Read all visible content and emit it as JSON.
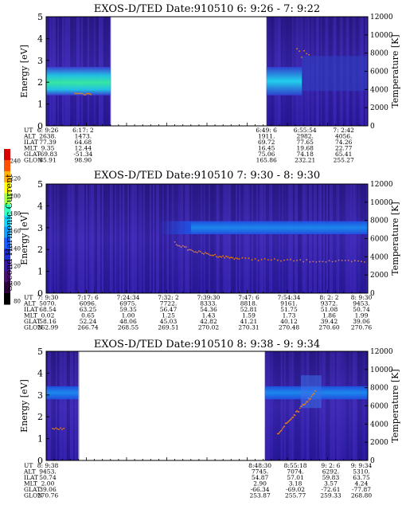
{
  "colorbar": {
    "label": "Second Harmonic Current",
    "ticks": [
      "240",
      "220",
      "200",
      "180",
      "160",
      "140",
      "120",
      "100",
      "80"
    ]
  },
  "chart_data": [
    {
      "type": "heatmap",
      "title": "EXOS-D/TED   Date:910510  6: 9:26 - 7: 9:22",
      "ylabel": "Energy [eV]",
      "y2label": "Temperature [K]",
      "ylim": [
        0,
        5
      ],
      "y2lim": [
        0,
        12000
      ],
      "yticks": [
        "0",
        "1",
        "2",
        "3",
        "4",
        "5"
      ],
      "y2ticks": [
        "0",
        "2000",
        "4000",
        "6000",
        "8000",
        "10000",
        "12000"
      ],
      "data_segments": [
        [
          0,
          0.2
        ],
        [
          0.685,
          1.0
        ]
      ],
      "bright_band": {
        "energy_range": [
          1.4,
          2.7
        ]
      },
      "ephemeris_labels": [
        "UT",
        "ALT",
        "ILAT",
        "MLT",
        "GLAT",
        "GLON"
      ],
      "ephemeris": [
        {
          "pos": 0.0,
          "values": [
            "6: 9:26",
            "2638.",
            "77.39",
            "9.35",
            "-69.83",
            "85.91"
          ]
        },
        {
          "pos": 0.11,
          "values": [
            "6:17: 2",
            "1473.",
            "64.68",
            "12.44",
            "-51.34",
            "98.90"
          ]
        },
        {
          "pos": 0.68,
          "values": [
            "6:49: 6",
            "1911.",
            "69.72",
            "16.45",
            "75.06",
            "165.86"
          ]
        },
        {
          "pos": 0.8,
          "values": [
            "6:55:54",
            "2982.",
            "77.65",
            "19.68",
            "74.18",
            "232.21"
          ]
        },
        {
          "pos": 0.92,
          "values": [
            "7: 2:42",
            "4056.",
            "74.26",
            "22.77",
            "65.41",
            "255.27"
          ]
        }
      ]
    },
    {
      "type": "heatmap",
      "title": "EXOS-D/TED   Date:910510  7: 9:30 - 8: 9:30",
      "ylabel": "Energy [eV]",
      "y2label": "Temperature [K]",
      "ylim": [
        0,
        5
      ],
      "y2lim": [
        0,
        12000
      ],
      "yticks": [
        "0",
        "1",
        "2",
        "3",
        "4",
        "5"
      ],
      "y2ticks": [
        "0",
        "2000",
        "4000",
        "6000",
        "8000",
        "10000",
        "12000"
      ],
      "data_segments": [
        [
          0,
          1.0
        ]
      ],
      "bright_band": {
        "energy_range": [
          2.7,
          3.3
        ],
        "start": 0.45
      },
      "temperature_trace": [
        {
          "t": 0.4,
          "T": 5500
        },
        {
          "t": 0.45,
          "T": 4700
        },
        {
          "t": 0.5,
          "T": 4300
        },
        {
          "t": 0.55,
          "T": 4000
        },
        {
          "t": 0.6,
          "T": 3800
        },
        {
          "t": 0.7,
          "T": 3650
        },
        {
          "t": 0.8,
          "T": 3550
        },
        {
          "t": 0.9,
          "T": 3500
        },
        {
          "t": 1.0,
          "T": 3450
        }
      ],
      "ephemeris_labels": [
        "UT",
        "ALT",
        "ILAT",
        "MLT",
        "GLAT",
        "GLON"
      ],
      "ephemeris": [
        {
          "pos": 0.0,
          "values": [
            "7: 9:30",
            "5070.",
            "68.54",
            "0.02",
            "58.16",
            "262.99"
          ]
        },
        {
          "pos": 0.125,
          "values": [
            "7:17: 6",
            "6096.",
            "63.25",
            "0.65",
            "52.24",
            "266.74"
          ]
        },
        {
          "pos": 0.25,
          "values": [
            "7:24:34",
            "6975.",
            "59.35",
            "1.00",
            "48.06",
            "268.55"
          ]
        },
        {
          "pos": 0.375,
          "values": [
            "7:32: 2",
            "7722.",
            "56.47",
            "1.25",
            "45.03",
            "269.51"
          ]
        },
        {
          "pos": 0.5,
          "values": [
            "7:39:30",
            "8333.",
            "54.36",
            "1.43",
            "42.82",
            "270.02"
          ]
        },
        {
          "pos": 0.625,
          "values": [
            "7:47: 6",
            "8818.",
            "52.81",
            "1.59",
            "41.21",
            "270.31"
          ]
        },
        {
          "pos": 0.75,
          "values": [
            "7:54:34",
            "9161.",
            "51.75",
            "1.73",
            "40.12",
            "270.48"
          ]
        },
        {
          "pos": 0.875,
          "values": [
            "8: 2: 2",
            "9372.",
            "51.08",
            "1.86",
            "39.42",
            "270.60"
          ]
        },
        {
          "pos": 1.0,
          "values": [
            "8: 9:30",
            "9453.",
            "50.74",
            "1.99",
            "39.06",
            "270.76"
          ]
        }
      ]
    },
    {
      "type": "heatmap",
      "title": "EXOS-D/TED   Date:910510  8: 9:38 - 9: 9:34",
      "ylabel": "Energy [eV]",
      "y2label": "Temperature [K]",
      "ylim": [
        0,
        5
      ],
      "y2lim": [
        0,
        12000
      ],
      "yticks": [
        "0",
        "1",
        "2",
        "3",
        "4",
        "5"
      ],
      "y2ticks": [
        "0",
        "2000",
        "4000",
        "6000",
        "8000",
        "10000",
        "12000"
      ],
      "data_segments": [
        [
          0,
          0.1
        ],
        [
          0.68,
          1.0
        ]
      ],
      "bright_band": {
        "energy_range": [
          2.8,
          3.4
        ]
      },
      "ephemeris_labels": [
        "UT",
        "ALT",
        "ILAT",
        "MLT",
        "GLAT",
        "GLON"
      ],
      "ephemeris": [
        {
          "pos": 0.0,
          "values": [
            "8: 9:38",
            "9453.",
            "50.74",
            "2.00",
            "39.06",
            "270.76"
          ]
        },
        {
          "pos": 0.66,
          "values": [
            "8:48:30",
            "7745.",
            "54.87",
            "2.90",
            "-66.34",
            "253.87"
          ]
        },
        {
          "pos": 0.77,
          "values": [
            "8:55:18",
            "7074.",
            "57.01",
            "3.18",
            "-69.02",
            "255.77"
          ]
        },
        {
          "pos": 0.88,
          "values": [
            "9: 2: 6",
            "6292.",
            "59.83",
            "3.57",
            "-72.61",
            "259.33"
          ]
        },
        {
          "pos": 1.0,
          "values": [
            "9: 9:34",
            "5310.",
            "63.75",
            "4.24",
            "-77.87",
            "268.80"
          ]
        }
      ]
    }
  ]
}
